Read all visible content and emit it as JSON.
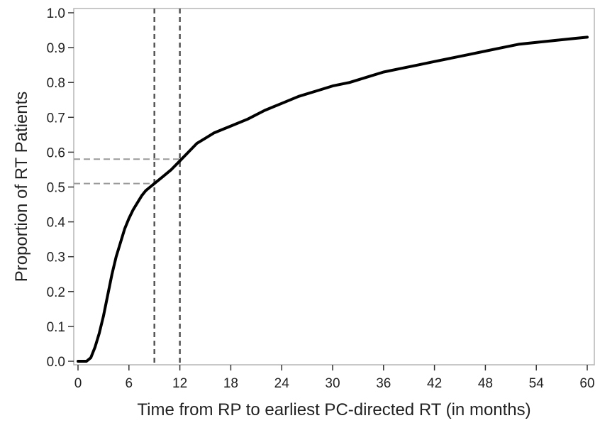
{
  "chart_data": {
    "type": "line",
    "title": "",
    "xlabel": "Time from RP to earliest PC-directed RT (in months)",
    "ylabel": "Proportion of RT Patients",
    "xlim": [
      0,
      60
    ],
    "ylim": [
      0,
      1.0
    ],
    "xticks": [
      0,
      6,
      12,
      18,
      24,
      30,
      36,
      42,
      48,
      54,
      60
    ],
    "yticks": [
      "0.0",
      "0.1",
      "0.2",
      "0.3",
      "0.4",
      "0.5",
      "0.6",
      "0.7",
      "0.8",
      "0.9",
      "1.0"
    ],
    "grid": false,
    "series": [
      {
        "name": "",
        "color": "#000000",
        "points": [
          [
            0,
            0.0
          ],
          [
            1,
            0.0
          ],
          [
            1.5,
            0.01
          ],
          [
            2,
            0.04
          ],
          [
            2.5,
            0.08
          ],
          [
            3,
            0.13
          ],
          [
            3.5,
            0.19
          ],
          [
            4,
            0.25
          ],
          [
            4.5,
            0.3
          ],
          [
            5,
            0.34
          ],
          [
            5.5,
            0.38
          ],
          [
            6,
            0.41
          ],
          [
            6.5,
            0.435
          ],
          [
            7,
            0.455
          ],
          [
            7.5,
            0.475
          ],
          [
            8,
            0.49
          ],
          [
            8.5,
            0.5
          ],
          [
            9,
            0.51
          ],
          [
            10,
            0.53
          ],
          [
            11,
            0.55
          ],
          [
            12,
            0.575
          ],
          [
            13,
            0.6
          ],
          [
            14,
            0.625
          ],
          [
            15,
            0.64
          ],
          [
            16,
            0.655
          ],
          [
            17,
            0.665
          ],
          [
            18,
            0.675
          ],
          [
            20,
            0.695
          ],
          [
            22,
            0.72
          ],
          [
            24,
            0.74
          ],
          [
            26,
            0.76
          ],
          [
            28,
            0.775
          ],
          [
            30,
            0.79
          ],
          [
            32,
            0.8
          ],
          [
            34,
            0.815
          ],
          [
            36,
            0.83
          ],
          [
            38,
            0.84
          ],
          [
            40,
            0.85
          ],
          [
            42,
            0.86
          ],
          [
            44,
            0.87
          ],
          [
            46,
            0.88
          ],
          [
            48,
            0.89
          ],
          [
            50,
            0.9
          ],
          [
            52,
            0.91
          ],
          [
            54,
            0.915
          ],
          [
            56,
            0.92
          ],
          [
            58,
            0.925
          ],
          [
            60,
            0.93
          ]
        ]
      }
    ],
    "reference_lines": {
      "vertical": [
        {
          "x": 9,
          "color": "#555555"
        },
        {
          "x": 12,
          "color": "#555555"
        }
      ],
      "horizontal": [
        {
          "y": 0.51,
          "x_end": 9,
          "color": "#999999"
        },
        {
          "y": 0.58,
          "x_end": 12,
          "color": "#999999"
        }
      ]
    }
  }
}
